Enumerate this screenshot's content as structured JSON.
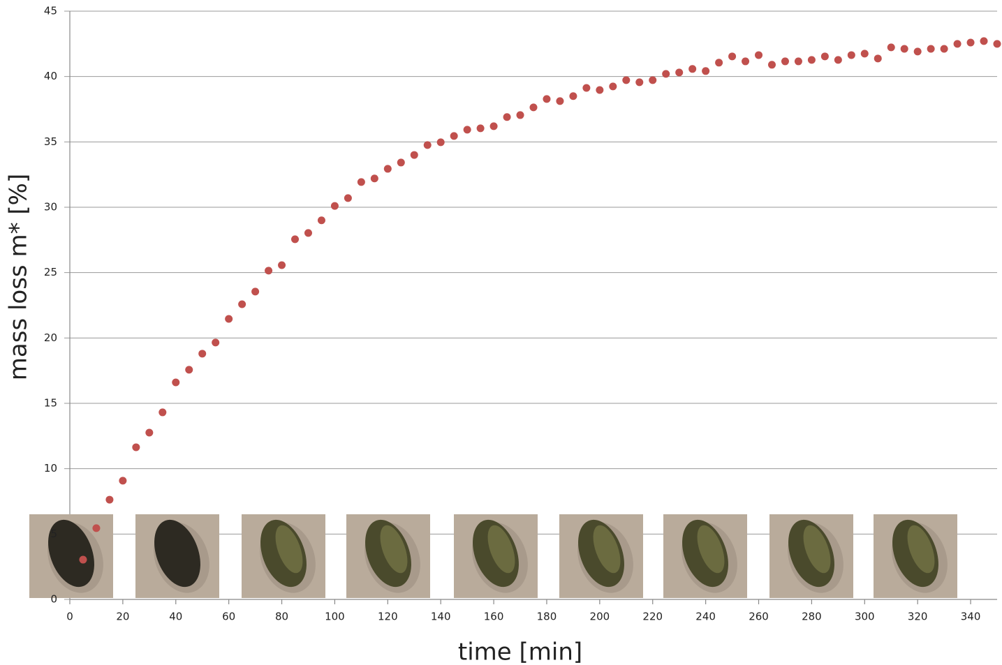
{
  "chart_data": {
    "type": "scatter",
    "xlabel": "time [min]",
    "ylabel": "mass loss m* [%]",
    "xlim": [
      0,
      350
    ],
    "ylim": [
      0,
      45
    ],
    "xticks": [
      0,
      20,
      40,
      60,
      80,
      100,
      120,
      140,
      160,
      180,
      200,
      220,
      240,
      260,
      280,
      300,
      320,
      340
    ],
    "yticks": [
      0,
      5,
      10,
      15,
      20,
      25,
      30,
      35,
      40,
      45
    ],
    "grid": true,
    "color": "#c0504d",
    "x": [
      5,
      10,
      15,
      20,
      25,
      30,
      35,
      40,
      45,
      50,
      55,
      60,
      65,
      70,
      75,
      80,
      85,
      90,
      95,
      100,
      105,
      110,
      115,
      120,
      125,
      130,
      135,
      140,
      145,
      150,
      155,
      160,
      165,
      170,
      175,
      180,
      185,
      190,
      195,
      200,
      205,
      210,
      215,
      220,
      225,
      230,
      235,
      240,
      245,
      250,
      255,
      260,
      265,
      270,
      275,
      280,
      285,
      290,
      295,
      300,
      305,
      310,
      315,
      320,
      325,
      330,
      335,
      340,
      345,
      350
    ],
    "values": [
      3.04,
      5.45,
      7.63,
      9.08,
      11.64,
      12.76,
      14.31,
      16.6,
      17.57,
      18.8,
      19.65,
      21.46,
      22.58,
      23.55,
      25.15,
      25.57,
      27.55,
      28.03,
      29.0,
      30.1,
      30.7,
      31.93,
      32.2,
      32.94,
      33.42,
      34.0,
      34.76,
      34.97,
      35.45,
      35.93,
      36.04,
      36.2,
      36.9,
      37.05,
      37.64,
      38.28,
      38.12,
      38.5,
      39.13,
      38.97,
      39.24,
      39.72,
      39.56,
      39.72,
      40.2,
      40.31,
      40.58,
      40.42,
      41.06,
      41.54,
      41.16,
      41.64,
      40.9,
      41.16,
      41.16,
      41.27,
      41.54,
      41.27,
      41.64,
      41.75,
      41.38,
      42.23,
      42.12,
      41.91,
      42.12,
      42.12,
      42.5,
      42.6,
      42.71,
      42.5
    ]
  }
}
